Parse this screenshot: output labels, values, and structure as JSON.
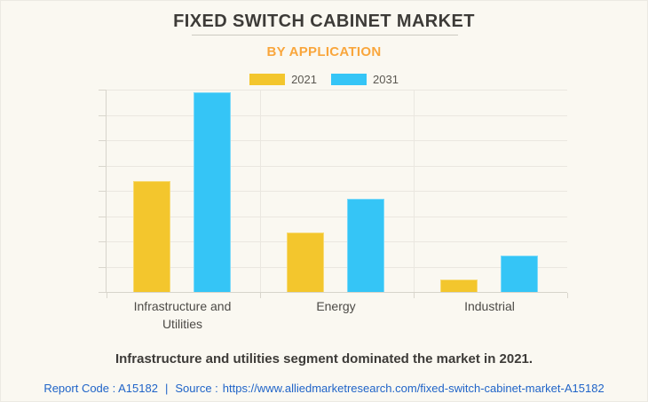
{
  "header": {
    "title": "FIXED SWITCH CABINET MARKET",
    "subtitle": "BY APPLICATION"
  },
  "chart_data": {
    "type": "bar",
    "title": "FIXED SWITCH CABINET MARKET",
    "subtitle": "BY APPLICATION",
    "categories": [
      "Infrastructure and Utilities",
      "Energy",
      "Industrial"
    ],
    "series": [
      {
        "name": "2021",
        "color": "#f3c62d",
        "values": [
          4.4,
          2.35,
          0.5
        ]
      },
      {
        "name": "2031",
        "color": "#35c5f6",
        "values": [
          7.9,
          3.7,
          1.45
        ]
      }
    ],
    "ylim": [
      0,
      8
    ],
    "y_gridline_interval": 1,
    "y_axis_labels_visible": false,
    "grid": true,
    "legend_position": "top"
  },
  "caption": {
    "text": "Infrastructure and utilities segment dominated the market in 2021."
  },
  "footer": {
    "report_code": "Report Code : A15182",
    "separator": "|",
    "source_prefix": "Source :",
    "source_url": "https://www.alliedmarketresearch.com/fixed-switch-cabinet-market-A15182"
  },
  "colors": {
    "background": "#faf8f1",
    "title_text": "#3d3b38",
    "subtitle_orange": "#f9a63c",
    "series_2021_yellow": "#f3c62d",
    "series_2031_blue": "#35c5f6",
    "gridline": "#eae7e0",
    "axis": "#d7d4cb",
    "axis_label": "#4c4a46",
    "footer_blue": "#2064c8"
  }
}
